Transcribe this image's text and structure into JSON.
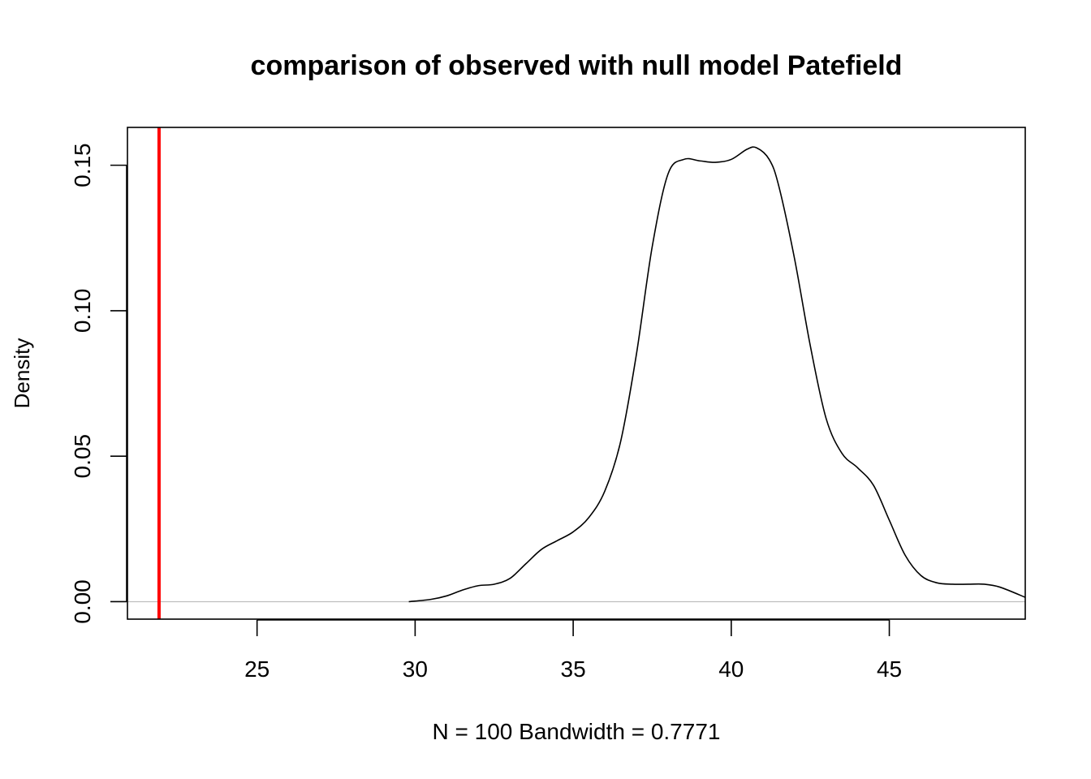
{
  "chart_data": {
    "type": "line",
    "title": "comparison of observed with null model Patefield",
    "xlabel": "N = 100   Bandwidth = 0.7771",
    "ylabel": "Density",
    "xlim": [
      20.9,
      49.3
    ],
    "ylim": [
      -0.006,
      0.163
    ],
    "x_ticks": [
      25,
      30,
      35,
      40,
      45
    ],
    "x_tick_labels": [
      "25",
      "30",
      "35",
      "40",
      "45"
    ],
    "y_ticks": [
      0.0,
      0.05,
      0.1,
      0.15
    ],
    "y_tick_labels": [
      "0.00",
      "0.05",
      "0.10",
      "0.15"
    ],
    "grid": false,
    "legend": "none",
    "zero_line_color": "#bebebe",
    "series": [
      {
        "color": "#000000",
        "x": [
          29.8,
          30.5,
          31.0,
          31.5,
          32.0,
          32.5,
          33.0,
          33.5,
          34.0,
          34.5,
          35.0,
          35.5,
          36.0,
          36.5,
          37.0,
          37.5,
          38.0,
          38.5,
          39.0,
          39.5,
          40.0,
          40.5,
          40.8,
          41.2,
          41.5,
          42.0,
          42.5,
          43.0,
          43.5,
          44.0,
          44.5,
          45.0,
          45.5,
          46.0,
          46.5,
          47.0,
          47.5,
          48.0,
          48.5,
          49.3
        ],
        "y": [
          0.0,
          0.0008,
          0.002,
          0.004,
          0.0055,
          0.006,
          0.008,
          0.013,
          0.018,
          0.021,
          0.024,
          0.029,
          0.038,
          0.055,
          0.085,
          0.122,
          0.147,
          0.152,
          0.1515,
          0.151,
          0.152,
          0.1555,
          0.156,
          0.152,
          0.143,
          0.118,
          0.088,
          0.063,
          0.051,
          0.046,
          0.04,
          0.028,
          0.016,
          0.009,
          0.0065,
          0.006,
          0.006,
          0.006,
          0.005,
          0.0015
        ]
      }
    ],
    "reference_lines": [
      {
        "orientation": "vertical",
        "x": 21.9,
        "color": "#ff0000"
      }
    ]
  }
}
